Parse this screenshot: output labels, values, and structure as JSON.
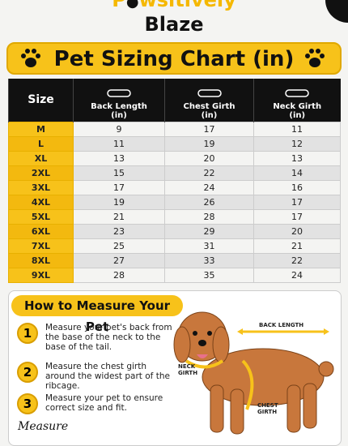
{
  "header": {
    "brand_start": "P",
    "brand_end": "wsitively",
    "brand_line2": "Blaze"
  },
  "title": "Pet Sizing Chart (in)",
  "table": {
    "columns": [
      {
        "name": "Size"
      },
      {
        "name": "Back Length",
        "unit": "(in)"
      },
      {
        "name": "Chest Girth",
        "unit": "(in)"
      },
      {
        "name": "Neck Girth",
        "unit": "(in)"
      }
    ],
    "rows": [
      [
        "M",
        9,
        17,
        11
      ],
      [
        "L",
        11,
        19,
        12
      ],
      [
        "XL",
        13,
        20,
        13
      ],
      [
        "2XL",
        15,
        22,
        14
      ],
      [
        "3XL",
        17,
        24,
        16
      ],
      [
        "4XL",
        19,
        26,
        17
      ],
      [
        "5XL",
        21,
        28,
        17
      ],
      [
        "6XL",
        23,
        29,
        20
      ],
      [
        "7XL",
        25,
        31,
        21
      ],
      [
        "8XL",
        27,
        33,
        22
      ],
      [
        "9XL",
        28,
        35,
        24
      ]
    ]
  },
  "measure": {
    "title": "How to Measure Your Pet",
    "steps": [
      {
        "number": "1",
        "text": "Measure your pet's back from the base of the neck to the base of the tail."
      },
      {
        "number": "2",
        "text": "Measure the chest girth around the widest part of the ribcage."
      },
      {
        "number": "3",
        "text": "Measure your pet to ensure correct size and fit."
      }
    ],
    "labels": {
      "back": "BACK LENGTH",
      "neck": "NECK GIRTH",
      "chest": "CHEST GIRTH"
    },
    "footer": "Measure"
  }
}
